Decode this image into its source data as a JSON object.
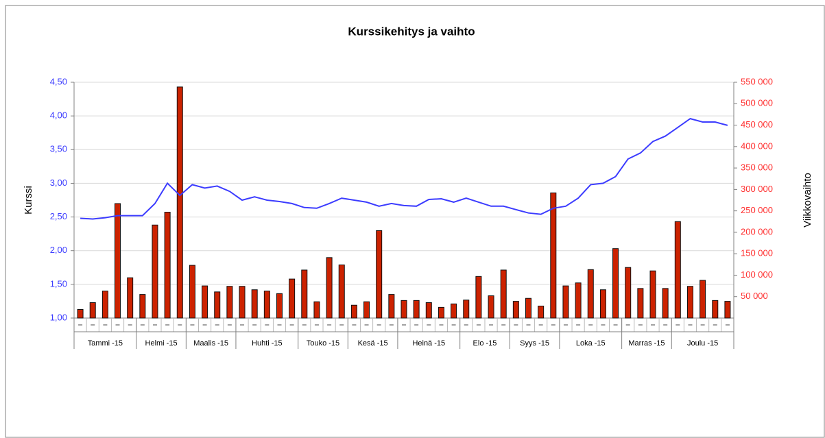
{
  "chart_data": {
    "type": "bar_line",
    "title": "Kurssikehitys ja vaihto",
    "y_label": "Kurssi",
    "y2_label": "Viikkovaihto",
    "categories": [
      "Tammi -15",
      null,
      null,
      null,
      null,
      "Helmi -15",
      null,
      null,
      null,
      "Maalis -15",
      null,
      null,
      null,
      "Huhti -15",
      null,
      null,
      null,
      null,
      "Touko -15",
      null,
      null,
      null,
      "Kesä -15",
      null,
      null,
      null,
      "Heinä -15",
      null,
      null,
      null,
      null,
      "Elo -15",
      null,
      null,
      null,
      "Syys -15",
      null,
      null,
      null,
      "Loka -15",
      null,
      null,
      null,
      null,
      "Marras -15",
      null,
      null,
      null,
      "Joulu -15",
      null,
      null,
      null,
      null
    ],
    "series": [
      {
        "type": "bar",
        "axis": "y2",
        "color": "#cc2200",
        "values": [
          20000,
          36000,
          63000,
          267000,
          94000,
          55000,
          217000,
          247000,
          539000,
          123000,
          75000,
          61000,
          74000,
          74000,
          66000,
          63000,
          57000,
          91000,
          112000,
          38000,
          141000,
          124000,
          30000,
          38000,
          204000,
          55000,
          41000,
          41000,
          36000,
          25000,
          33000,
          42000,
          97000,
          52000,
          112000,
          39000,
          46000,
          28000,
          292000,
          75000,
          82000,
          113000,
          66000,
          162000,
          118000,
          69000,
          110000,
          69000,
          225000,
          74000,
          88000,
          41000,
          39000
        ]
      },
      {
        "type": "line",
        "axis": "y",
        "color": "#3c3cff",
        "values": [
          2.48,
          2.47,
          2.49,
          2.52,
          2.52,
          2.52,
          2.7,
          3.0,
          2.82,
          2.98,
          2.93,
          2.96,
          2.88,
          2.75,
          2.8,
          2.75,
          2.73,
          2.7,
          2.64,
          2.63,
          2.7,
          2.78,
          2.75,
          2.72,
          2.66,
          2.7,
          2.67,
          2.66,
          2.76,
          2.77,
          2.72,
          2.78,
          2.72,
          2.66,
          2.66,
          2.61,
          2.56,
          2.54,
          2.63,
          2.66,
          2.78,
          2.98,
          3.0,
          3.1,
          3.36,
          3.45,
          3.62,
          3.7,
          3.83,
          3.96,
          3.91,
          3.91,
          3.86
        ]
      }
    ],
    "ylim": [
      1,
      4.5
    ],
    "yticks": [
      {
        "value": 1,
        "label": "1,00"
      },
      {
        "value": 1.5,
        "label": "1,50"
      },
      {
        "value": 2,
        "label": "2,00"
      },
      {
        "value": 2.5,
        "label": "2,50"
      },
      {
        "value": 3,
        "label": "3,00"
      },
      {
        "value": 3.5,
        "label": "3,50"
      },
      {
        "value": 4,
        "label": "4,00"
      },
      {
        "value": 4.5,
        "label": "4,50"
      }
    ],
    "y2lim": [
      0,
      550000
    ],
    "y2ticks": [
      {
        "value": 50000,
        "label": "50 000"
      },
      {
        "value": 100000,
        "label": "100 000"
      },
      {
        "value": 150000,
        "label": "150 000"
      },
      {
        "value": 200000,
        "label": "200 000"
      },
      {
        "value": 250000,
        "label": "250 000"
      },
      {
        "value": 300000,
        "label": "300 000"
      },
      {
        "value": 350000,
        "label": "350 000"
      },
      {
        "value": 400000,
        "label": "400 000"
      },
      {
        "value": 450000,
        "label": "450 000"
      },
      {
        "value": 500000,
        "label": "500 000"
      },
      {
        "value": 550000,
        "label": "550 000"
      }
    ],
    "grid": true
  }
}
